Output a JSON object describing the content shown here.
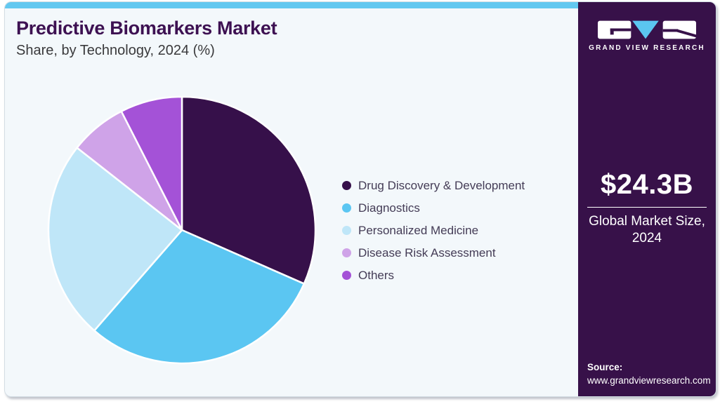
{
  "header": {
    "title": "Predictive Biomarkers Market",
    "subtitle": "Share, by Technology, 2024 (%)"
  },
  "sidebar": {
    "logo_icon": "gvr-logo",
    "brand_name": "GRAND VIEW RESEARCH",
    "market_size": {
      "value": "$24.3B",
      "label": "Global Market Size, 2024"
    },
    "source": {
      "label": "Source:",
      "url": "www.grandviewresearch.com"
    }
  },
  "chart_data": {
    "type": "pie",
    "title": "Predictive Biomarkers Market Share, by Technology, 2024 (%)",
    "unit": "percent",
    "direction": "clockwise",
    "start_angle_deg": 0,
    "legend_position": "right",
    "segments": [
      {
        "label": "Drug Discovery & Development",
        "value": 31.6,
        "color": "#36104a"
      },
      {
        "label": "Diagnostics",
        "value": 29.8,
        "color": "#5bc6f2"
      },
      {
        "label": "Personalized Medicine",
        "value": 24.2,
        "color": "#bfe6f8"
      },
      {
        "label": "Disease Risk Assessment",
        "value": 6.9,
        "color": "#cfa3e8"
      },
      {
        "label": "Others",
        "value": 7.5,
        "color": "#a452d7"
      }
    ]
  },
  "theme": {
    "top_bar_color": "#63c8f0",
    "card_background": "#f3f8fb",
    "sidebar_background": "#371149",
    "title_color": "#3d1152",
    "logo_triangle_color": "#5bc6f0"
  }
}
